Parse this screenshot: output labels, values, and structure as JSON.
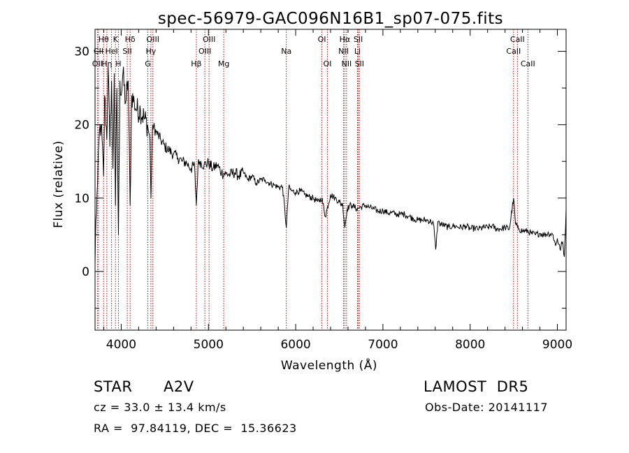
{
  "chart_data": {
    "type": "line",
    "title": "spec-56979-GAC096N16B1_sp07-075.fits",
    "xlabel": "Wavelength (Å)",
    "ylabel": "Flux (relative)",
    "xlim": [
      3700,
      9100
    ],
    "ylim": [
      -8,
      33
    ],
    "x_ticks": [
      4000,
      5000,
      6000,
      7000,
      8000,
      9000
    ],
    "y_ticks": [
      0,
      10,
      20,
      30
    ],
    "grid": false,
    "line_color": "#000000",
    "marker_color": "#cc0000",
    "series": [
      {
        "x": [
          3700,
          3710,
          3730,
          3750,
          3770,
          3798,
          3810,
          3835,
          3850,
          3870,
          3889,
          3905,
          3920,
          3934,
          3950,
          3968,
          3985,
          4000,
          4020,
          4050,
          4080,
          4102,
          4120,
          4150,
          4180,
          4220,
          4260,
          4300,
          4330,
          4341,
          4360,
          4400,
          4450,
          4500,
          4550,
          4600,
          4650,
          4700,
          4750,
          4800,
          4840,
          4861,
          4880,
          4900,
          4950,
          5000,
          5050,
          5100,
          5150,
          5200,
          5250,
          5300,
          5350,
          5400,
          5450,
          5500,
          5550,
          5600,
          5650,
          5700,
          5750,
          5800,
          5850,
          5893,
          5920,
          5950,
          6000,
          6050,
          6100,
          6150,
          6200,
          6250,
          6300,
          6340,
          6400,
          6450,
          6500,
          6540,
          6563,
          6590,
          6620,
          6650,
          6700,
          6750,
          6800,
          6850,
          6900,
          6950,
          7000,
          7050,
          7100,
          7150,
          7200,
          7250,
          7300,
          7350,
          7400,
          7450,
          7500,
          7550,
          7580,
          7605,
          7630,
          7650,
          7700,
          7750,
          7800,
          7850,
          7900,
          7950,
          8000,
          8050,
          8100,
          8150,
          8200,
          8250,
          8300,
          8350,
          8400,
          8450,
          8498,
          8520,
          8542,
          8560,
          8600,
          8640,
          8662,
          8700,
          8750,
          8800,
          8850,
          8900,
          8950,
          8980,
          9000,
          9030,
          9060,
          9080,
          9100
        ],
        "y": [
          1,
          7,
          12,
          19,
          20,
          13,
          24,
          18,
          28,
          17,
          26,
          14,
          27,
          9,
          25,
          5,
          26,
          24,
          27,
          23,
          26,
          9,
          24,
          23,
          22,
          22,
          21,
          20,
          18,
          10,
          20,
          19,
          18,
          17,
          16.5,
          16,
          15.5,
          15,
          14.8,
          14,
          14.5,
          9,
          14.5,
          15,
          14.5,
          14.8,
          14,
          14.5,
          13.5,
          13.3,
          13.2,
          13.5,
          13,
          13.5,
          12.5,
          13,
          12,
          12.5,
          12.5,
          12,
          11.8,
          11.5,
          11.5,
          6,
          11.5,
          11,
          10.8,
          11,
          10.5,
          10.2,
          10,
          9.5,
          10,
          7.5,
          10.5,
          10,
          9.5,
          9,
          6,
          8.5,
          9,
          9,
          8.5,
          8.8,
          9,
          8.7,
          8.5,
          8.2,
          8.3,
          8,
          8,
          7.8,
          7.8,
          7.8,
          7.5,
          7.2,
          7,
          7,
          7,
          6.8,
          6.5,
          3,
          6.8,
          6.5,
          6.3,
          6,
          6.2,
          6.1,
          6,
          6.2,
          5.8,
          5.9,
          5.8,
          6,
          6,
          6.2,
          5.8,
          5.8,
          6,
          5.8,
          10,
          6.5,
          6,
          5.8,
          5.5,
          5.5,
          5.5,
          5.2,
          5,
          5.2,
          5,
          5.2,
          5,
          3.5,
          4.5,
          3,
          4,
          2,
          8.5
        ]
      }
    ],
    "lines": [
      {
        "label": "Hθ",
        "x": 3798,
        "row": 0
      },
      {
        "label": "OII",
        "x": 3727,
        "row": 2
      },
      {
        "label": "Hη",
        "x": 3835,
        "row": 2
      },
      {
        "label": "CII",
        "x": 3740,
        "row": 1
      },
      {
        "label": "HeI",
        "x": 3889,
        "row": 1
      },
      {
        "label": "K",
        "x": 3934,
        "row": 0
      },
      {
        "label": "H",
        "x": 3968,
        "row": 2
      },
      {
        "label": "Hδ",
        "x": 4102,
        "row": 0
      },
      {
        "label": "SII",
        "x": 4069,
        "row": 1
      },
      {
        "label": "OIII",
        "x": 4363,
        "row": 0
      },
      {
        "label": "Hγ",
        "x": 4340,
        "row": 1
      },
      {
        "label": "G",
        "x": 4305,
        "row": 2
      },
      {
        "label": "Hβ",
        "x": 4861,
        "row": 2
      },
      {
        "label": "OIII",
        "x": 4959,
        "row": 1
      },
      {
        "label": "OIII",
        "x": 5007,
        "row": 0
      },
      {
        "label": "Mg",
        "x": 5175,
        "row": 2
      },
      {
        "label": "Na",
        "x": 5893,
        "row": 1
      },
      {
        "label": "OI",
        "x": 6300,
        "row": 0
      },
      {
        "label": "OI",
        "x": 6364,
        "row": 2
      },
      {
        "label": "Hα",
        "x": 6563,
        "row": 0
      },
      {
        "label": "NII",
        "x": 6548,
        "row": 1
      },
      {
        "label": "NII",
        "x": 6583,
        "row": 2
      },
      {
        "label": "SII",
        "x": 6717,
        "row": 0
      },
      {
        "label": "Li",
        "x": 6708,
        "row": 1
      },
      {
        "label": "SII",
        "x": 6731,
        "row": 2
      },
      {
        "label": "CaII",
        "x": 8542,
        "row": 0
      },
      {
        "label": "CaII",
        "x": 8498,
        "row": 1
      },
      {
        "label": "CaII",
        "x": 8662,
        "row": 2
      }
    ]
  },
  "info": {
    "object_class": "STAR",
    "subclass": "A2V",
    "survey": "LAMOST  DR5",
    "redshift": "cz = 33.0 ± 13.4 km/s",
    "obs_date": "Obs-Date: 20141117",
    "coords": "RA =  97.84119, DEC =  15.36623"
  }
}
